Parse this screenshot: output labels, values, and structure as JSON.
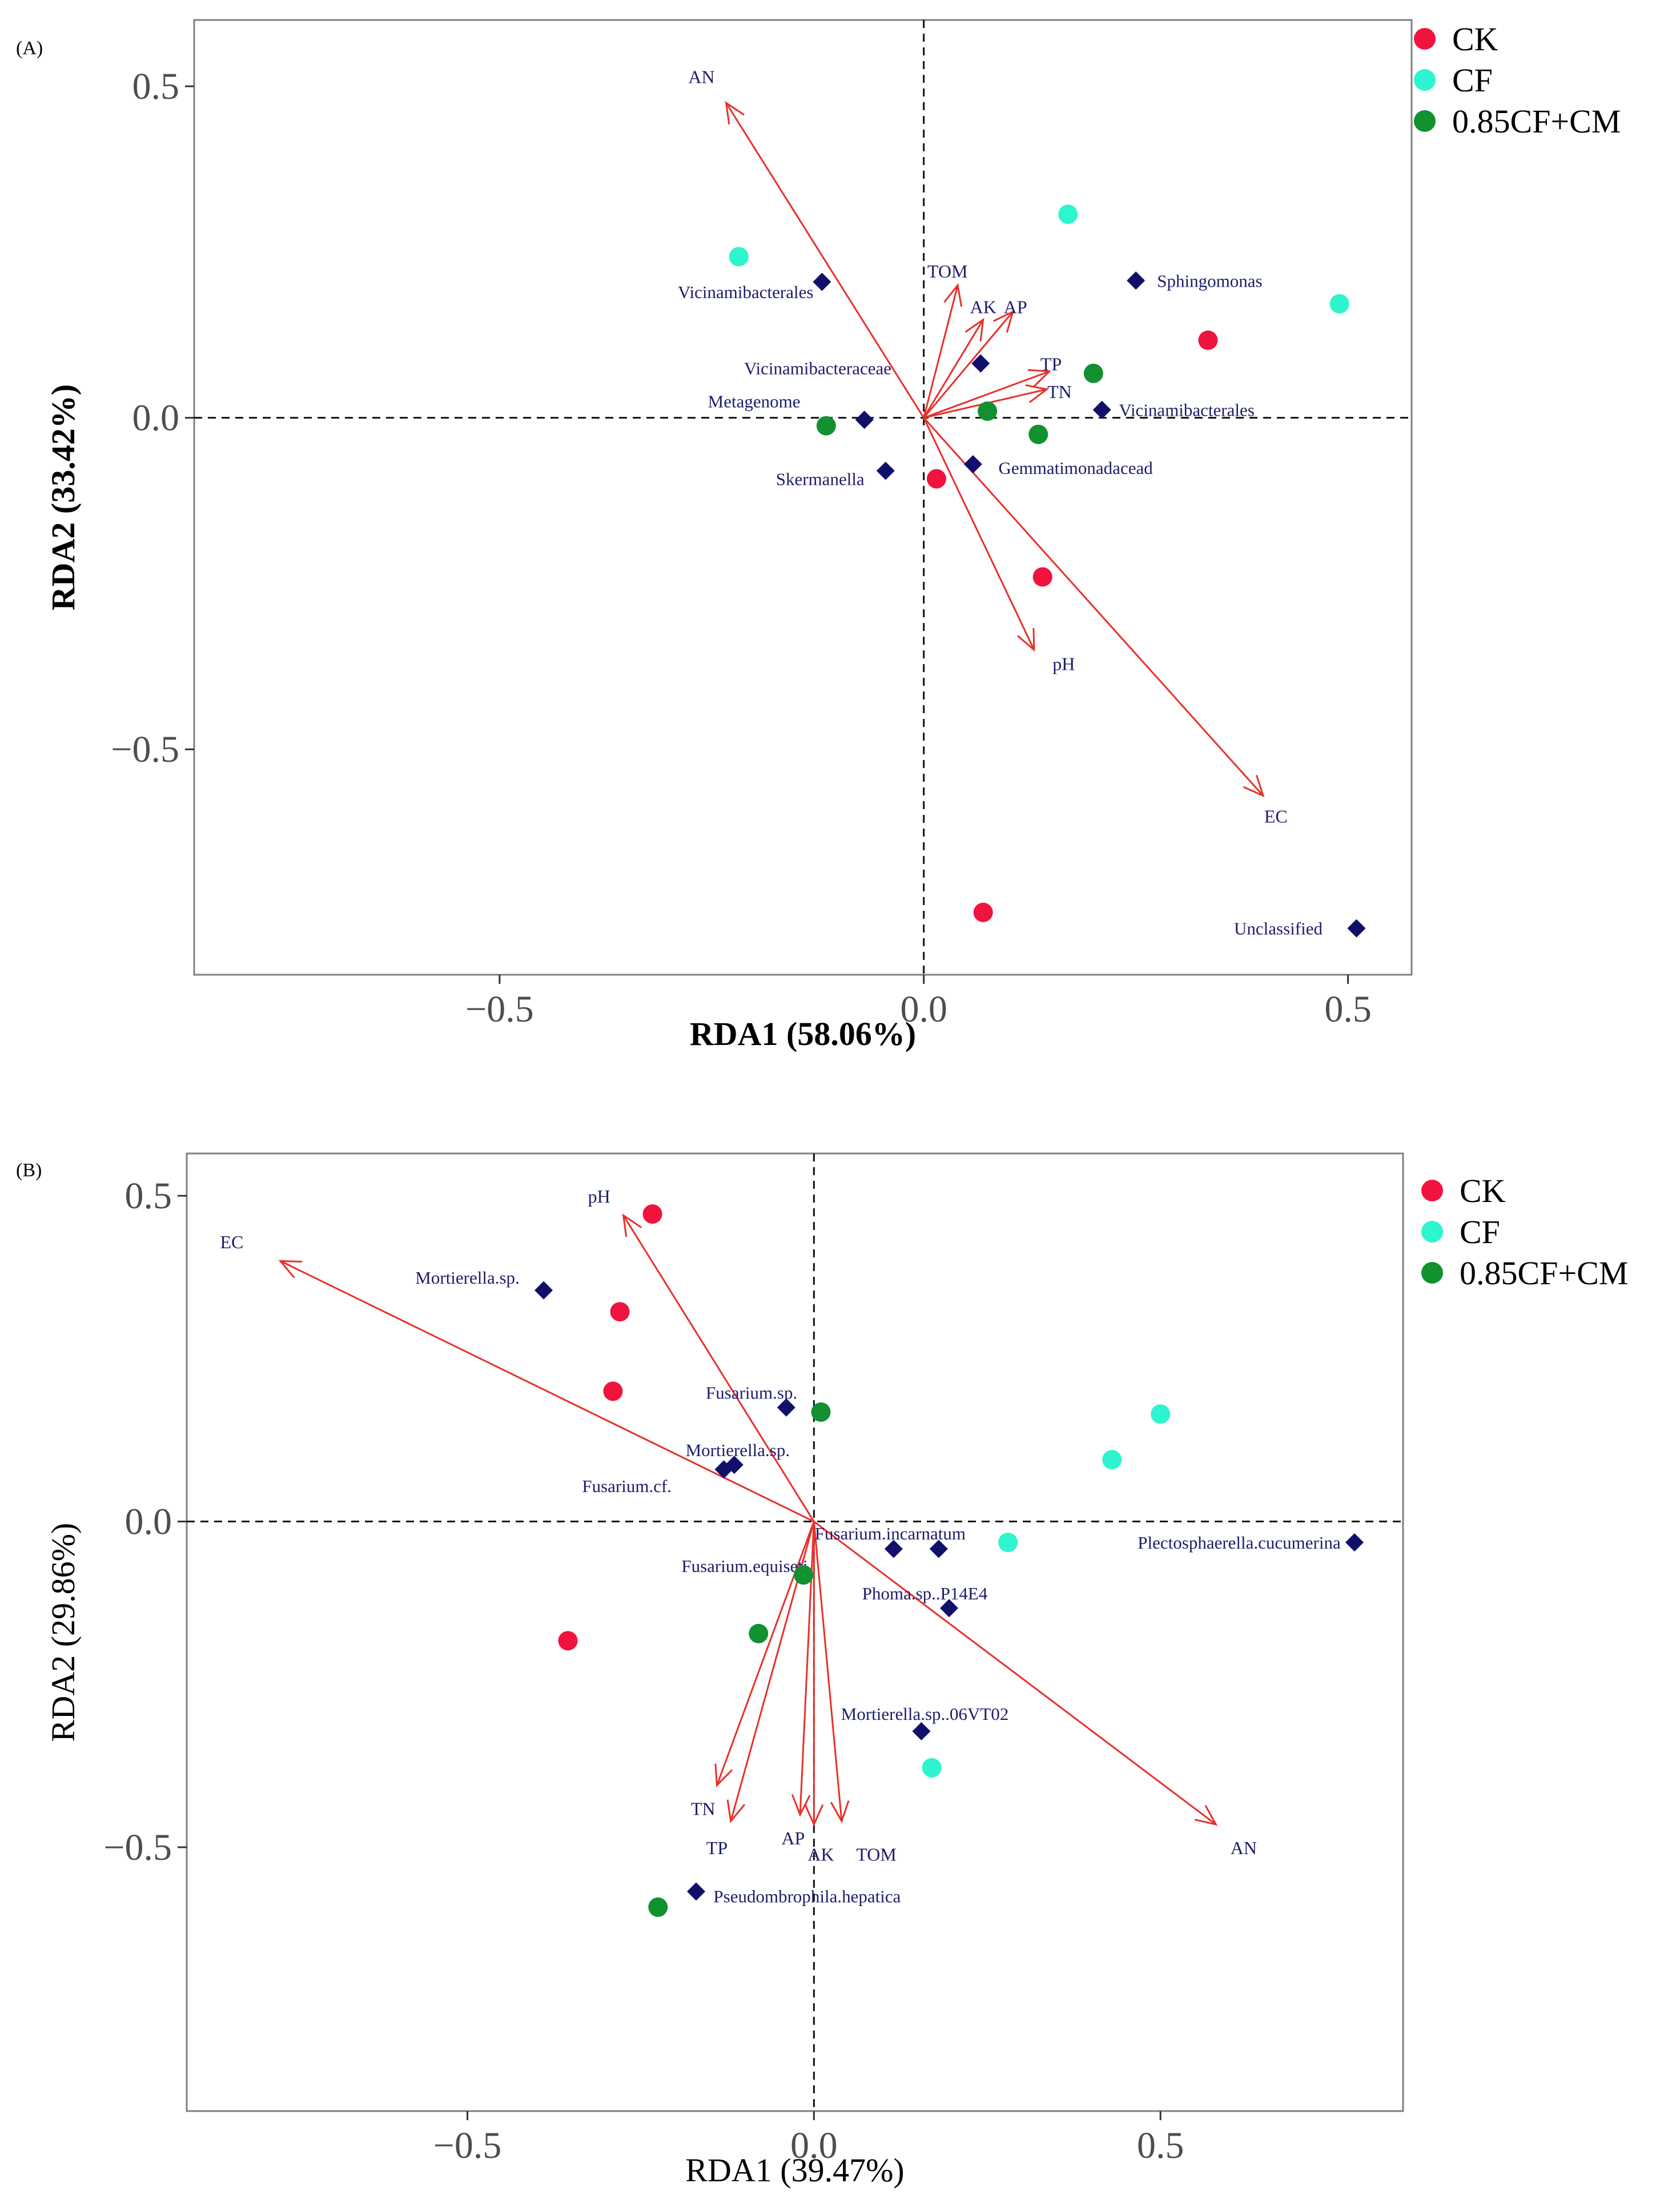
{
  "colors": {
    "CK": "#f0133d",
    "CF": "#2df5cf",
    "CM": "#119130",
    "arrow": "#e8302a",
    "species": "#10106a",
    "label": "#1d1d6b",
    "axis": "#333333"
  },
  "chart_data": [
    {
      "type": "scatter",
      "panel_label": "(A)",
      "xlabel": "RDA1 (58.06%)",
      "ylabel": "RDA2 (33.42%)",
      "xlim": [
        -0.86,
        0.575
      ],
      "ylim": [
        -0.84,
        0.6
      ],
      "xticks": [
        {
          "v": -0.5,
          "label": "−0.5"
        },
        {
          "v": 0.0,
          "label": "0.0"
        },
        {
          "v": 0.5,
          "label": "0.5"
        }
      ],
      "yticks": [
        {
          "v": 0.5,
          "label": "0.5"
        },
        {
          "v": 0.0,
          "label": "0.0"
        },
        {
          "v": -0.5,
          "label": "−0.5"
        }
      ],
      "legend": [
        {
          "key": "CK",
          "label": "CK"
        },
        {
          "key": "CF",
          "label": "CF"
        },
        {
          "key": "CM",
          "label": "0.85CF+CM"
        }
      ],
      "samples": [
        {
          "group": "CK",
          "x": 0.335,
          "y": 0.117
        },
        {
          "group": "CK",
          "x": 0.015,
          "y": -0.092
        },
        {
          "group": "CK",
          "x": 0.14,
          "y": -0.24
        },
        {
          "group": "CK",
          "x": 0.07,
          "y": -0.746
        },
        {
          "group": "CF",
          "x": -0.218,
          "y": 0.243
        },
        {
          "group": "CF",
          "x": 0.17,
          "y": 0.307
        },
        {
          "group": "CF",
          "x": 0.49,
          "y": 0.172
        },
        {
          "group": "CM",
          "x": -0.115,
          "y": -0.012
        },
        {
          "group": "CM",
          "x": 0.075,
          "y": 0.01
        },
        {
          "group": "CM",
          "x": 0.2,
          "y": 0.067
        },
        {
          "group": "CM",
          "x": 0.135,
          "y": -0.025
        }
      ],
      "arrows": [
        {
          "name": "AN",
          "x": -0.233,
          "y": 0.475,
          "lx": -0.262,
          "ly": 0.515
        },
        {
          "name": "TOM",
          "x": 0.04,
          "y": 0.2,
          "lx": 0.028,
          "ly": 0.222
        },
        {
          "name": "AK",
          "x": 0.07,
          "y": 0.148,
          "lx": 0.07,
          "ly": 0.168
        },
        {
          "name": "AP",
          "x": 0.105,
          "y": 0.16,
          "lx": 0.108,
          "ly": 0.168
        },
        {
          "name": "TP",
          "x": 0.148,
          "y": 0.07,
          "lx": 0.15,
          "ly": 0.082
        },
        {
          "name": "TN",
          "x": 0.145,
          "y": 0.043,
          "lx": 0.16,
          "ly": 0.04
        },
        {
          "name": "pH",
          "x": 0.13,
          "y": -0.35,
          "lx": 0.165,
          "ly": -0.37
        },
        {
          "name": "EC",
          "x": 0.4,
          "y": -0.57,
          "lx": 0.415,
          "ly": -0.6
        }
      ],
      "species": [
        {
          "name": "Vicinamibacterales",
          "x": -0.12,
          "y": 0.205,
          "lx": -0.21,
          "ly": 0.19,
          "anchor": "middle"
        },
        {
          "name": "Sphingomonas",
          "x": 0.25,
          "y": 0.207,
          "lx": 0.275,
          "ly": 0.207,
          "anchor": "start"
        },
        {
          "name": "Vicinamibacteraceae",
          "x": 0.067,
          "y": 0.082,
          "lx": -0.125,
          "ly": 0.075,
          "anchor": "middle"
        },
        {
          "name": "Metagenome",
          "x": -0.07,
          "y": -0.003,
          "lx": -0.2,
          "ly": 0.025,
          "anchor": "middle"
        },
        {
          "name": "Vicinamibacterales",
          "x": 0.21,
          "y": 0.012,
          "lx": 0.23,
          "ly": 0.012,
          "anchor": "start"
        },
        {
          "name": "Gemmatimonadacead",
          "x": 0.058,
          "y": -0.07,
          "lx": 0.088,
          "ly": -0.075,
          "anchor": "start"
        },
        {
          "name": "Skermanella",
          "x": -0.045,
          "y": -0.08,
          "lx": -0.07,
          "ly": -0.092,
          "anchor": "end"
        },
        {
          "name": "Unclassified",
          "x": 0.51,
          "y": -0.77,
          "lx": 0.47,
          "ly": -0.77,
          "anchor": "end"
        }
      ]
    },
    {
      "type": "scatter",
      "panel_label": "(B)",
      "xlabel": "RDA1 (39.47%)",
      "ylabel": "RDA2 (29.86%)",
      "xlim": [
        -0.905,
        0.85
      ],
      "ylim": [
        -0.905,
        0.565
      ],
      "xticks": [
        {
          "v": -0.5,
          "label": "−0.5"
        },
        {
          "v": 0.0,
          "label": "0.0"
        },
        {
          "v": 0.5,
          "label": "0.5"
        }
      ],
      "yticks": [
        {
          "v": 0.5,
          "label": "0.5"
        },
        {
          "v": 0.0,
          "label": "0.0"
        },
        {
          "v": -0.5,
          "label": "−0.5"
        }
      ],
      "legend": [
        {
          "key": "CK",
          "label": "CK"
        },
        {
          "key": "CF",
          "label": "CF"
        },
        {
          "key": "CM",
          "label": "0.85CF+CM"
        }
      ],
      "samples": [
        {
          "group": "CK",
          "x": -0.233,
          "y": 0.472
        },
        {
          "group": "CK",
          "x": -0.28,
          "y": 0.322
        },
        {
          "group": "CK",
          "x": -0.29,
          "y": 0.2
        },
        {
          "group": "CK",
          "x": -0.355,
          "y": -0.183
        },
        {
          "group": "CF",
          "x": 0.5,
          "y": 0.165
        },
        {
          "group": "CF",
          "x": 0.43,
          "y": 0.095
        },
        {
          "group": "CF",
          "x": 0.28,
          "y": -0.032
        },
        {
          "group": "CF",
          "x": 0.17,
          "y": -0.378
        },
        {
          "group": "CM",
          "x": 0.01,
          "y": 0.168
        },
        {
          "group": "CM",
          "x": -0.015,
          "y": -0.082
        },
        {
          "group": "CM",
          "x": -0.08,
          "y": -0.172
        },
        {
          "group": "CM",
          "x": -0.225,
          "y": -0.592
        }
      ],
      "arrows": [
        {
          "name": "EC",
          "x": -0.77,
          "y": 0.4,
          "lx": -0.84,
          "ly": 0.43
        },
        {
          "name": "pH",
          "x": -0.275,
          "y": 0.47,
          "lx": -0.31,
          "ly": 0.5
        },
        {
          "name": "AN",
          "x": 0.58,
          "y": -0.465,
          "lx": 0.62,
          "ly": -0.5
        },
        {
          "name": "TN",
          "x": -0.14,
          "y": -0.405,
          "lx": -0.16,
          "ly": -0.44
        },
        {
          "name": "TP",
          "x": -0.12,
          "y": -0.46,
          "lx": -0.14,
          "ly": -0.5
        },
        {
          "name": "AP",
          "x": -0.02,
          "y": -0.45,
          "lx": -0.03,
          "ly": -0.485
        },
        {
          "name": "AK",
          "x": 0.0,
          "y": -0.465,
          "lx": 0.01,
          "ly": -0.51
        },
        {
          "name": "TOM",
          "x": 0.04,
          "y": -0.46,
          "lx": 0.09,
          "ly": -0.51
        }
      ],
      "species": [
        {
          "name": "Mortierella.sp.",
          "x": -0.39,
          "y": 0.355,
          "lx": -0.5,
          "ly": 0.375,
          "anchor": "middle"
        },
        {
          "name": "Fusarium.sp.",
          "x": -0.04,
          "y": 0.175,
          "lx": -0.09,
          "ly": 0.198,
          "anchor": "middle"
        },
        {
          "name": "Mortierella.sp.",
          "x": -0.115,
          "y": 0.087,
          "lx": -0.11,
          "ly": 0.11,
          "anchor": "middle"
        },
        {
          "name": "Fusarium.cf.",
          "x": -0.13,
          "y": 0.08,
          "lx": -0.27,
          "ly": 0.055,
          "anchor": "middle"
        },
        {
          "name": "Fusarium.incarnatum",
          "x": 0.115,
          "y": -0.042,
          "lx": 0.11,
          "ly": -0.018,
          "anchor": "middle"
        },
        {
          "name": "Fusarium.equiseti",
          "x": 0.18,
          "y": -0.042,
          "lx": -0.1,
          "ly": -0.068,
          "anchor": "middle"
        },
        {
          "name": "Plectosphaerella.cucumerina",
          "x": 0.78,
          "y": -0.032,
          "lx": 0.76,
          "ly": -0.032,
          "anchor": "end"
        },
        {
          "name": "Phoma.sp..P14E4",
          "x": 0.195,
          "y": -0.133,
          "lx": 0.16,
          "ly": -0.11,
          "anchor": "middle"
        },
        {
          "name": "Mortierella.sp..06VT02",
          "x": 0.155,
          "y": -0.322,
          "lx": 0.16,
          "ly": -0.295,
          "anchor": "middle"
        },
        {
          "name": "Pseudombrophila.hepatica",
          "x": -0.17,
          "y": -0.568,
          "lx": -0.145,
          "ly": -0.575,
          "anchor": "start"
        }
      ]
    }
  ]
}
